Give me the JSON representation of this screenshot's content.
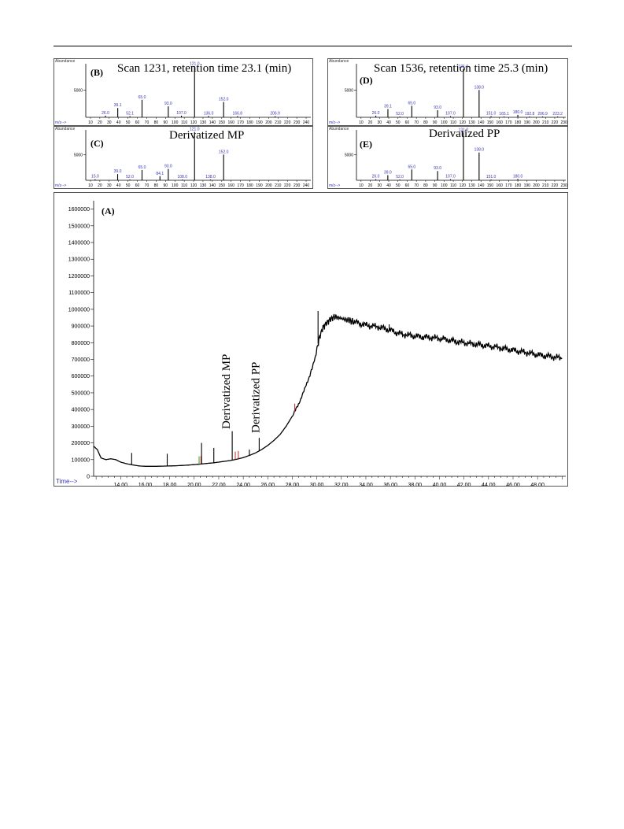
{
  "header": {},
  "spectra": [
    {
      "id": "B",
      "tag": "(B)",
      "title": "Scan 1231, retention time 23.1 (min)",
      "ylabel": "Abundance",
      "xlabel": "m/z-->",
      "ytick": "5000",
      "xticks": [
        10,
        20,
        30,
        40,
        50,
        60,
        70,
        80,
        90,
        100,
        110,
        120,
        130,
        140,
        150,
        160,
        170,
        180,
        190,
        200,
        210,
        220,
        230,
        240
      ],
      "xtick_labels": [
        "10",
        "20",
        "30",
        "40",
        "50",
        "60",
        "70",
        "80",
        "90",
        "100",
        "110",
        "120",
        "130",
        "140",
        "150",
        "160",
        "170",
        "180",
        "190",
        "200",
        "210",
        "220",
        "230",
        "240"
      ],
      "xrange": [
        5,
        245
      ],
      "ymax": 9800,
      "peaks": [
        {
          "mz": 26.0,
          "i": 300,
          "label": "26.0"
        },
        {
          "mz": 39.1,
          "i": 1700,
          "label": "39.1"
        },
        {
          "mz": 52.1,
          "i": 200,
          "label": "52.1"
        },
        {
          "mz": 65.0,
          "i": 3200,
          "label": "65.0"
        },
        {
          "mz": 93.0,
          "i": 2000,
          "label": "93.0"
        },
        {
          "mz": 107.0,
          "i": 300,
          "label": "107.0"
        },
        {
          "mz": 121.0,
          "i": 9300,
          "label": "121.0"
        },
        {
          "mz": 136.0,
          "i": 250,
          "label": "136.0"
        },
        {
          "mz": 152.0,
          "i": 2800,
          "label": "152.0"
        },
        {
          "mz": 166.8,
          "i": 200,
          "label": "166.8"
        },
        {
          "mz": 206.9,
          "i": 200,
          "label": "206.9"
        }
      ]
    },
    {
      "id": "C",
      "tag": "(C)",
      "title": "Derivatized MP",
      "ylabel": "Abundance",
      "xlabel": "m/z-->",
      "ytick": "5000",
      "xticks": [
        10,
        20,
        30,
        40,
        50,
        60,
        70,
        80,
        90,
        100,
        110,
        120,
        130,
        140,
        150,
        160,
        170,
        180,
        190,
        200,
        210,
        220,
        230,
        240
      ],
      "xtick_labels": [
        "10",
        "20",
        "30",
        "40",
        "50",
        "60",
        "70",
        "80",
        "90",
        "100",
        "110",
        "120",
        "130",
        "140",
        "150",
        "160",
        "170",
        "180",
        "190",
        "200",
        "210",
        "220",
        "230",
        "240"
      ],
      "xrange": [
        5,
        245
      ],
      "ymax": 9800,
      "peaks": [
        {
          "mz": 15.0,
          "i": 200,
          "label": "15.0"
        },
        {
          "mz": 39.0,
          "i": 1200,
          "label": "39.0"
        },
        {
          "mz": 52.0,
          "i": 150,
          "label": "52.0"
        },
        {
          "mz": 65.0,
          "i": 2000,
          "label": "65.0"
        },
        {
          "mz": 84.1,
          "i": 800,
          "label": "84.1"
        },
        {
          "mz": 93.0,
          "i": 2200,
          "label": "93.0"
        },
        {
          "mz": 108.0,
          "i": 150,
          "label": "108.0"
        },
        {
          "mz": 121.0,
          "i": 9400,
          "label": "121.0"
        },
        {
          "mz": 138.0,
          "i": 150,
          "label": "138.0"
        },
        {
          "mz": 152.0,
          "i": 5000,
          "label": "152.0"
        }
      ]
    },
    {
      "id": "D",
      "tag": "(D)",
      "title": "Scan 1536, retention time 25.3 (min)",
      "ylabel": "Abundance",
      "xlabel": "m/z-->",
      "ytick": "5000",
      "xticks": [
        10,
        20,
        30,
        40,
        50,
        60,
        70,
        80,
        90,
        100,
        110,
        120,
        130,
        140,
        150,
        160,
        170,
        180,
        190,
        200,
        210,
        220,
        230
      ],
      "xtick_labels": [
        "10",
        "20",
        "30",
        "40",
        "50",
        "60",
        "70",
        "80",
        "90",
        "100",
        "110",
        "120",
        "130",
        "140",
        "150",
        "160",
        "170",
        "180",
        "190",
        "200",
        "210",
        "220",
        "230"
      ],
      "xrange": [
        5,
        232
      ],
      "ymax": 9800,
      "peaks": [
        {
          "mz": 26.0,
          "i": 300,
          "label": "26.0"
        },
        {
          "mz": 39.1,
          "i": 1500,
          "label": "39.1"
        },
        {
          "mz": 52.0,
          "i": 150,
          "label": "52.0"
        },
        {
          "mz": 65.0,
          "i": 2100,
          "label": "65.0"
        },
        {
          "mz": 93.0,
          "i": 1300,
          "label": "93.0"
        },
        {
          "mz": 107.0,
          "i": 200,
          "label": "107.0"
        },
        {
          "mz": 121.0,
          "i": 8800,
          "label": "121.0"
        },
        {
          "mz": 138.0,
          "i": 5000,
          "label": "138.0"
        },
        {
          "mz": 151.0,
          "i": 200,
          "label": "151.0"
        },
        {
          "mz": 165.1,
          "i": 150,
          "label": "165.1"
        },
        {
          "mz": 180.0,
          "i": 450,
          "label": "180.0"
        },
        {
          "mz": 192.8,
          "i": 150,
          "label": "192.8"
        },
        {
          "mz": 206.9,
          "i": 150,
          "label": "206.9"
        },
        {
          "mz": 223.2,
          "i": 150,
          "label": "223.2"
        }
      ]
    },
    {
      "id": "E",
      "tag": "(E)",
      "title": "Derivatized PP",
      "ylabel": "Abundance",
      "xlabel": "m/z-->",
      "ytick": "5000",
      "xticks": [
        10,
        20,
        30,
        40,
        50,
        60,
        70,
        80,
        90,
        100,
        110,
        120,
        130,
        140,
        150,
        160,
        170,
        180,
        190,
        200,
        210,
        220,
        230
      ],
      "xtick_labels": [
        "10",
        "20",
        "30",
        "40",
        "50",
        "60",
        "70",
        "80",
        "90",
        "100",
        "110",
        "120",
        "130",
        "140",
        "150",
        "160",
        "170",
        "180",
        "190",
        "200",
        "210",
        "220",
        "230"
      ],
      "xrange": [
        5,
        232
      ],
      "ymax": 9800,
      "peaks": [
        {
          "mz": 26.0,
          "i": 200,
          "label": "26.0"
        },
        {
          "mz": 39.0,
          "i": 1000,
          "label": "39.0"
        },
        {
          "mz": 52.0,
          "i": 150,
          "label": "52.0"
        },
        {
          "mz": 65.0,
          "i": 2100,
          "label": "65.0"
        },
        {
          "mz": 93.0,
          "i": 1800,
          "label": "93.0"
        },
        {
          "mz": 107.0,
          "i": 200,
          "label": "107.0"
        },
        {
          "mz": 121.0,
          "i": 9300,
          "label": "121.0"
        },
        {
          "mz": 138.0,
          "i": 5400,
          "label": "138.0"
        },
        {
          "mz": 151.0,
          "i": 150,
          "label": "151.0"
        },
        {
          "mz": 180.0,
          "i": 250,
          "label": "180.0"
        }
      ]
    }
  ],
  "chromatogram": {
    "tag": "(A)",
    "xlabel": "Time-->",
    "annotations": [
      {
        "text": "Derivatized MP",
        "x": 23.1
      },
      {
        "text": "Derivatized PP",
        "x": 25.5
      }
    ],
    "yticks": [
      0,
      100000,
      200000,
      300000,
      400000,
      500000,
      600000,
      700000,
      800000,
      900000,
      1000000,
      1100000,
      1200000,
      1300000,
      1400000,
      1500000,
      1600000
    ],
    "ytick_labels": [
      "0",
      "100000",
      "200000",
      "300000",
      "400000",
      "500000",
      "600000",
      "700000",
      "800000",
      "900000",
      "1000000",
      "1100000",
      "1200000",
      "1300000",
      "1400000",
      "1500000",
      "1600000"
    ],
    "xticks": [
      14,
      16,
      18,
      20,
      22,
      24,
      26,
      28,
      30,
      32,
      34,
      36,
      38,
      40,
      42,
      44,
      46,
      48
    ],
    "xtick_labels": [
      "14.00",
      "16.00",
      "18.00",
      "20.00",
      "22.00",
      "24.00",
      "26.00",
      "28.00",
      "30.00",
      "32.00",
      "34.00",
      "36.00",
      "38.00",
      "40.00",
      "42.00",
      "44.00",
      "46.00",
      "48.00"
    ],
    "xrange": [
      11.8,
      50.3
    ],
    "ylim": [
      0,
      1650000
    ],
    "baseline": [
      [
        11.8,
        180000
      ],
      [
        12.1,
        160000
      ],
      [
        12.4,
        110000
      ],
      [
        12.8,
        100000
      ],
      [
        13.2,
        105000
      ],
      [
        13.6,
        100000
      ],
      [
        14.0,
        85000
      ],
      [
        14.5,
        75000
      ],
      [
        15.0,
        68000
      ],
      [
        15.5,
        62000
      ],
      [
        16.0,
        60000
      ],
      [
        16.5,
        60000
      ],
      [
        17.0,
        60000
      ],
      [
        17.5,
        61000
      ],
      [
        18.0,
        62000
      ],
      [
        18.5,
        63000
      ],
      [
        19.0,
        65000
      ],
      [
        19.5,
        67000
      ],
      [
        20.0,
        70000
      ],
      [
        20.5,
        73000
      ],
      [
        21.0,
        77000
      ],
      [
        21.5,
        80000
      ],
      [
        22.0,
        85000
      ],
      [
        22.5,
        90000
      ],
      [
        23.0,
        95000
      ],
      [
        23.5,
        103000
      ],
      [
        24.0,
        112000
      ],
      [
        24.5,
        125000
      ],
      [
        25.0,
        140000
      ],
      [
        25.5,
        160000
      ],
      [
        26.0,
        185000
      ],
      [
        26.5,
        215000
      ],
      [
        27.0,
        250000
      ],
      [
        27.5,
        300000
      ],
      [
        28.0,
        360000
      ],
      [
        28.5,
        430000
      ],
      [
        29.0,
        520000
      ],
      [
        29.5,
        620000
      ],
      [
        29.9,
        720000
      ],
      [
        30.2,
        830000
      ],
      [
        30.5,
        890000
      ],
      [
        30.8,
        920000
      ],
      [
        31.1,
        940000
      ],
      [
        31.4,
        955000
      ],
      [
        31.8,
        950000
      ],
      [
        32.2,
        940000
      ],
      [
        32.6,
        935000
      ],
      [
        33.0,
        925000
      ],
      [
        33.5,
        915000
      ],
      [
        34.0,
        905000
      ],
      [
        34.5,
        900000
      ],
      [
        35.0,
        895000
      ],
      [
        35.5,
        885000
      ],
      [
        36.0,
        875000
      ],
      [
        36.5,
        860000
      ],
      [
        37.0,
        850000
      ],
      [
        37.5,
        845000
      ],
      [
        38.0,
        840000
      ],
      [
        38.5,
        835000
      ],
      [
        39.0,
        832000
      ],
      [
        39.5,
        830000
      ],
      [
        40.0,
        825000
      ],
      [
        40.5,
        820000
      ],
      [
        41.0,
        812000
      ],
      [
        41.5,
        805000
      ],
      [
        42.0,
        800000
      ],
      [
        42.5,
        795000
      ],
      [
        43.0,
        790000
      ],
      [
        43.5,
        785000
      ],
      [
        44.0,
        780000
      ],
      [
        44.5,
        775000
      ],
      [
        45.0,
        768000
      ],
      [
        45.5,
        762000
      ],
      [
        46.0,
        755000
      ],
      [
        46.5,
        748000
      ],
      [
        47.0,
        742000
      ],
      [
        47.5,
        735000
      ],
      [
        48.0,
        728000
      ],
      [
        48.5,
        722000
      ],
      [
        49.0,
        718000
      ],
      [
        49.5,
        712000
      ],
      [
        50.0,
        708000
      ]
    ],
    "spikes": [
      {
        "x": 14.9,
        "y": 140000
      },
      {
        "x": 17.8,
        "y": 135000
      },
      {
        "x": 20.6,
        "y": 200000
      },
      {
        "x": 21.6,
        "y": 170000
      },
      {
        "x": 23.1,
        "y": 270000
      },
      {
        "x": 24.5,
        "y": 160000
      },
      {
        "x": 25.3,
        "y": 230000
      },
      {
        "x": 30.1,
        "y": 990000
      },
      {
        "x": 35.9,
        "y": 910000
      }
    ],
    "colors": {
      "trace": "#000000",
      "axis": "#000000",
      "tick_label": "#000000",
      "time_label": "#3333cc",
      "accent_red": "#cc2222",
      "accent_green": "#22aa22"
    }
  }
}
